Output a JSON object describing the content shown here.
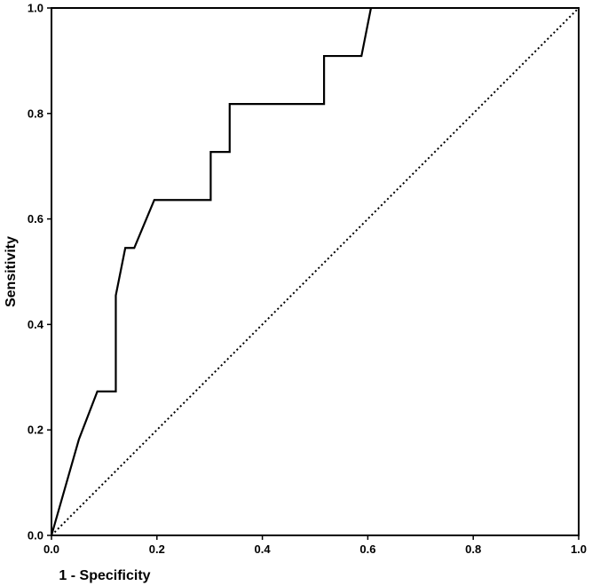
{
  "chart_data": {
    "type": "line",
    "title": "",
    "xlabel": "1 - Specificity",
    "ylabel": "Sensitivity",
    "xlim": [
      0.0,
      1.0
    ],
    "ylim": [
      0.0,
      1.0
    ],
    "x_ticks": [
      0.0,
      0.2,
      0.4,
      0.6,
      0.8,
      1.0
    ],
    "y_ticks": [
      0.0,
      0.2,
      0.4,
      0.6,
      0.8,
      1.0
    ],
    "x_tick_labels": [
      "0.0",
      "0.2",
      "0.4",
      "0.6",
      "0.8",
      "1.0"
    ],
    "y_tick_labels": [
      "0.0",
      "0.2",
      "0.4",
      "0.6",
      "0.8",
      "1.0"
    ],
    "grid": false,
    "legend": "none",
    "series": [
      {
        "style": "solid",
        "color": "#000000",
        "points": [
          [
            0.0,
            0.0
          ],
          [
            0.052,
            0.182
          ],
          [
            0.087,
            0.273
          ],
          [
            0.122,
            0.273
          ],
          [
            0.122,
            0.455
          ],
          [
            0.14,
            0.545
          ],
          [
            0.157,
            0.545
          ],
          [
            0.195,
            0.636
          ],
          [
            0.302,
            0.636
          ],
          [
            0.302,
            0.727
          ],
          [
            0.338,
            0.727
          ],
          [
            0.338,
            0.818
          ],
          [
            0.517,
            0.818
          ],
          [
            0.517,
            0.909
          ],
          [
            0.588,
            0.909
          ],
          [
            0.606,
            1.0
          ]
        ]
      },
      {
        "style": "dotted",
        "color": "#000000",
        "points": [
          [
            0.0,
            0.0
          ],
          [
            1.0,
            1.0
          ]
        ]
      }
    ]
  }
}
